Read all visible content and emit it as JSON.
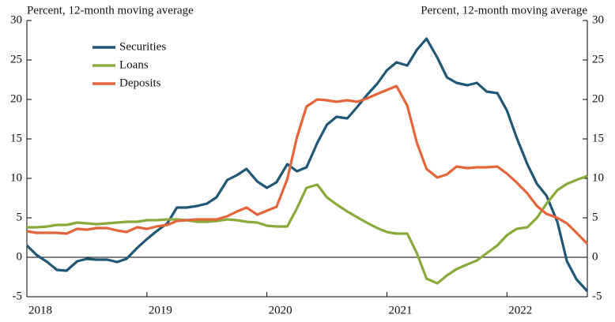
{
  "chart_data": {
    "type": "line",
    "y_label_left": "Percent, 12-month moving average",
    "y_label_right": "Percent, 12-month moving average",
    "x": [
      2018,
      2018.08,
      2018.17,
      2018.25,
      2018.33,
      2018.42,
      2018.5,
      2018.58,
      2018.67,
      2018.75,
      2018.83,
      2018.92,
      2019,
      2019.08,
      2019.17,
      2019.25,
      2019.33,
      2019.42,
      2019.5,
      2019.58,
      2019.67,
      2019.75,
      2019.83,
      2019.92,
      2020,
      2020.08,
      2020.17,
      2020.25,
      2020.33,
      2020.42,
      2020.5,
      2020.58,
      2020.67,
      2020.75,
      2020.83,
      2020.92,
      2021,
      2021.08,
      2021.17,
      2021.25,
      2021.33,
      2021.42,
      2021.5,
      2021.58,
      2021.67,
      2021.75,
      2021.83,
      2021.92,
      2022,
      2022.08,
      2022.17,
      2022.25,
      2022.33,
      2022.42,
      2022.5,
      2022.58,
      2022.67
    ],
    "series": [
      {
        "name": "Securities",
        "color": "#1f5775",
        "values": [
          1.5,
          0.3,
          -0.6,
          -1.6,
          -1.7,
          -0.5,
          -0.2,
          -0.3,
          -0.3,
          -0.6,
          -0.2,
          1.2,
          2.3,
          3.3,
          4.3,
          6.3,
          6.3,
          6.5,
          6.8,
          7.6,
          9.8,
          10.4,
          11.2,
          9.6,
          8.8,
          9.5,
          11.8,
          10.9,
          11.4,
          14.5,
          16.8,
          17.8,
          17.6,
          19.0,
          20.5,
          22.0,
          23.7,
          24.7,
          24.3,
          26.3,
          27.7,
          25.3,
          22.8,
          22.1,
          21.8,
          22.1,
          21.0,
          20.8,
          18.6,
          15.2,
          11.8,
          9.3,
          7.8,
          4.5,
          -0.5,
          -2.8,
          -4.3
        ]
      },
      {
        "name": "Loans",
        "color": "#8aab3c",
        "values": [
          3.8,
          3.8,
          3.9,
          4.1,
          4.1,
          4.4,
          4.3,
          4.2,
          4.3,
          4.4,
          4.5,
          4.5,
          4.7,
          4.7,
          4.8,
          4.8,
          4.7,
          4.5,
          4.5,
          4.6,
          4.8,
          4.7,
          4.5,
          4.4,
          4.0,
          3.9,
          3.9,
          6.2,
          8.8,
          9.2,
          7.6,
          6.7,
          5.8,
          5.1,
          4.4,
          3.7,
          3.2,
          3.0,
          3.0,
          0.5,
          -2.7,
          -3.3,
          -2.3,
          -1.5,
          -0.9,
          -0.4,
          0.5,
          1.5,
          2.8,
          3.6,
          3.8,
          5.0,
          6.8,
          8.5,
          9.3,
          9.8,
          10.3
        ]
      },
      {
        "name": "Deposits",
        "color": "#e5653a",
        "values": [
          3.3,
          3.1,
          3.1,
          3.1,
          3.0,
          3.6,
          3.5,
          3.7,
          3.7,
          3.4,
          3.2,
          3.8,
          3.6,
          3.9,
          4.1,
          4.6,
          4.7,
          4.8,
          4.8,
          4.8,
          5.2,
          5.8,
          6.3,
          5.4,
          5.9,
          6.4,
          9.9,
          15.2,
          19.1,
          20.0,
          19.9,
          19.7,
          19.9,
          19.7,
          20.1,
          20.7,
          21.2,
          21.7,
          19.2,
          14.5,
          11.2,
          10.1,
          10.5,
          11.5,
          11.3,
          11.4,
          11.4,
          11.5,
          10.6,
          9.5,
          8.1,
          6.5,
          5.5,
          5.0,
          4.3,
          3.1,
          1.7
        ]
      }
    ],
    "xlim": [
      2018,
      2022.67
    ],
    "xticks": [
      2018,
      2019,
      2020,
      2021,
      2022
    ],
    "ylim": [
      -5,
      30
    ],
    "yticks": [
      -5,
      0,
      5,
      10,
      15,
      20,
      25,
      30
    ],
    "y2lim": [
      -5,
      30
    ],
    "y2ticks": [
      -5,
      0,
      5,
      10,
      15,
      20,
      25,
      30
    ],
    "grid": false,
    "legend": "upper-left"
  }
}
